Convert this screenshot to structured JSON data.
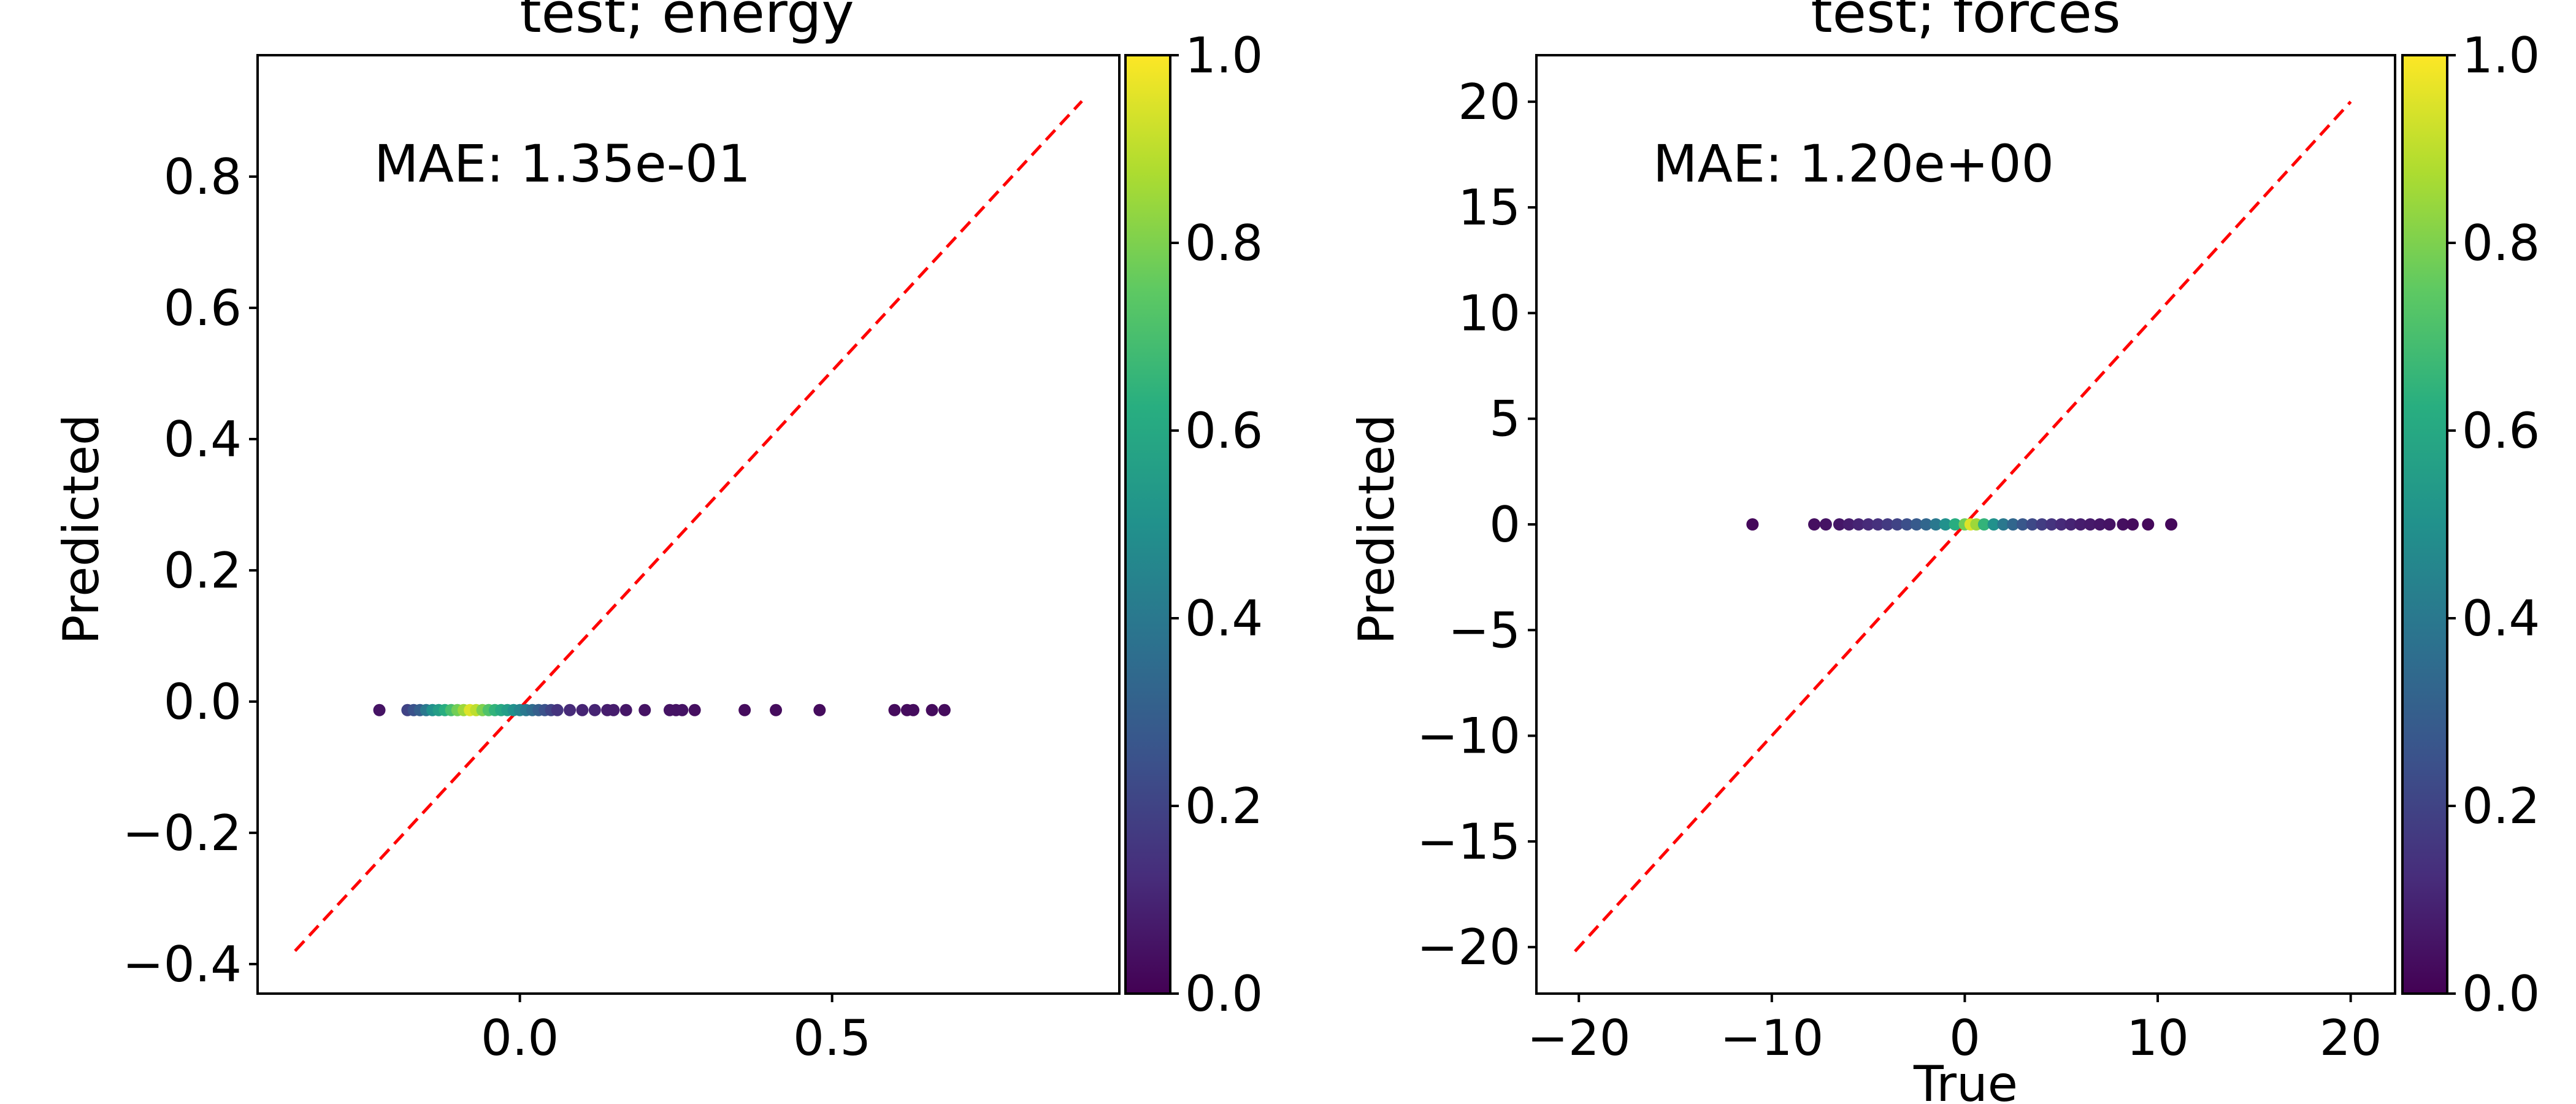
{
  "chart_data": [
    {
      "type": "scatter",
      "title": "test; energy",
      "xlabel": "",
      "ylabel": "Predicted",
      "annotation": "MAE: 1.35e-01",
      "xlim": [
        -0.42,
        0.96
      ],
      "ylim": [
        -0.445,
        0.985
      ],
      "xticks": [
        0.0,
        0.5
      ],
      "xtick_labels": [
        "0.0",
        "0.5"
      ],
      "yticks": [
        -0.4,
        -0.2,
        0.0,
        0.2,
        0.4,
        0.6,
        0.8
      ],
      "ytick_labels": [
        "−0.4",
        "−0.2",
        "0.0",
        "0.2",
        "0.4",
        "0.6",
        "0.8"
      ],
      "grid": false,
      "reference_line": {
        "from": [
          -0.36,
          -0.38
        ],
        "to": [
          0.9,
          0.915
        ],
        "color": "#ff0000",
        "style": "dashed"
      },
      "colorbar": {
        "min": 0.0,
        "max": 1.0,
        "ticks": [
          0.0,
          0.2,
          0.4,
          0.6,
          0.8,
          1.0
        ],
        "tick_labels": [
          "0.0",
          "0.2",
          "0.4",
          "0.6",
          "0.8",
          "1.0"
        ],
        "colormap": "viridis"
      },
      "series": [
        {
          "points": [
            [
              -0.225,
              -0.013,
              0.05
            ],
            [
              -0.18,
              -0.013,
              0.2
            ],
            [
              -0.17,
              -0.013,
              0.25
            ],
            [
              -0.16,
              -0.013,
              0.3
            ],
            [
              -0.15,
              -0.013,
              0.4
            ],
            [
              -0.14,
              -0.013,
              0.5
            ],
            [
              -0.13,
              -0.013,
              0.55
            ],
            [
              -0.12,
              -0.013,
              0.62
            ],
            [
              -0.11,
              -0.013,
              0.7
            ],
            [
              -0.1,
              -0.013,
              0.78
            ],
            [
              -0.09,
              -0.013,
              0.85
            ],
            [
              -0.08,
              -0.013,
              0.95
            ],
            [
              -0.07,
              -0.013,
              0.9
            ],
            [
              -0.06,
              -0.013,
              0.8
            ],
            [
              -0.05,
              -0.013,
              0.72
            ],
            [
              -0.04,
              -0.013,
              0.65
            ],
            [
              -0.03,
              -0.013,
              0.6
            ],
            [
              -0.02,
              -0.013,
              0.55
            ],
            [
              -0.01,
              -0.013,
              0.5
            ],
            [
              0.0,
              -0.013,
              0.45
            ],
            [
              0.01,
              -0.013,
              0.4
            ],
            [
              0.02,
              -0.013,
              0.35
            ],
            [
              0.03,
              -0.013,
              0.3
            ],
            [
              0.04,
              -0.013,
              0.25
            ],
            [
              0.05,
              -0.013,
              0.2
            ],
            [
              0.06,
              -0.013,
              0.15
            ],
            [
              0.08,
              -0.013,
              0.12
            ],
            [
              0.1,
              -0.013,
              0.1
            ],
            [
              0.12,
              -0.013,
              0.1
            ],
            [
              0.14,
              -0.013,
              0.08
            ],
            [
              0.15,
              -0.013,
              0.08
            ],
            [
              0.17,
              -0.013,
              0.06
            ],
            [
              0.2,
              -0.013,
              0.05
            ],
            [
              0.24,
              -0.013,
              0.05
            ],
            [
              0.25,
              -0.013,
              0.05
            ],
            [
              0.26,
              -0.013,
              0.05
            ],
            [
              0.28,
              -0.013,
              0.04
            ],
            [
              0.36,
              -0.013,
              0.03
            ],
            [
              0.41,
              -0.013,
              0.03
            ],
            [
              0.48,
              -0.013,
              0.03
            ],
            [
              0.6,
              -0.013,
              0.03
            ],
            [
              0.62,
              -0.013,
              0.03
            ],
            [
              0.63,
              -0.013,
              0.03
            ],
            [
              0.66,
              -0.013,
              0.03
            ],
            [
              0.68,
              -0.013,
              0.03
            ]
          ]
        }
      ]
    },
    {
      "type": "scatter",
      "title": "test; forces",
      "xlabel": "True",
      "ylabel": "Predicted",
      "annotation": "MAE: 1.20e+00",
      "xlim": [
        -22.2,
        22.3
      ],
      "ylim": [
        -22.2,
        22.2
      ],
      "xticks": [
        -20,
        -10,
        0,
        10,
        20
      ],
      "xtick_labels": [
        "−20",
        "−10",
        "0",
        "10",
        "20"
      ],
      "yticks": [
        -20,
        -15,
        -10,
        -5,
        0,
        5,
        10,
        15,
        20
      ],
      "ytick_labels": [
        "−20",
        "−15",
        "−10",
        "−5",
        "0",
        "5",
        "10",
        "15",
        "20"
      ],
      "grid": false,
      "reference_line": {
        "from": [
          -20.2,
          -20.2
        ],
        "to": [
          20.0,
          20.0
        ],
        "color": "#ff0000",
        "style": "dashed"
      },
      "colorbar": {
        "min": 0.0,
        "max": 1.0,
        "ticks": [
          0.0,
          0.2,
          0.4,
          0.6,
          0.8,
          1.0
        ],
        "tick_labels": [
          "0.0",
          "0.2",
          "0.4",
          "0.6",
          "0.8",
          "1.0"
        ],
        "colormap": "viridis"
      },
      "series": [
        {
          "points": [
            [
              -11.0,
              0,
              0.02
            ],
            [
              -7.8,
              0,
              0.04
            ],
            [
              -7.2,
              0,
              0.05
            ],
            [
              -6.5,
              0,
              0.06
            ],
            [
              -6.0,
              0,
              0.08
            ],
            [
              -5.5,
              0,
              0.1
            ],
            [
              -5.0,
              0,
              0.12
            ],
            [
              -4.5,
              0,
              0.14
            ],
            [
              -4.0,
              0,
              0.17
            ],
            [
              -3.5,
              0,
              0.2
            ],
            [
              -3.0,
              0,
              0.24
            ],
            [
              -2.5,
              0,
              0.28
            ],
            [
              -2.0,
              0,
              0.33
            ],
            [
              -1.5,
              0,
              0.4
            ],
            [
              -1.0,
              0,
              0.5
            ],
            [
              -0.5,
              0,
              0.62
            ],
            [
              0.0,
              0,
              0.78
            ],
            [
              0.3,
              0,
              0.95
            ],
            [
              0.6,
              0,
              0.85
            ],
            [
              1.0,
              0,
              0.65
            ],
            [
              1.5,
              0,
              0.5
            ],
            [
              2.0,
              0,
              0.4
            ],
            [
              2.5,
              0,
              0.33
            ],
            [
              3.0,
              0,
              0.27
            ],
            [
              3.5,
              0,
              0.22
            ],
            [
              4.0,
              0,
              0.18
            ],
            [
              4.5,
              0,
              0.15
            ],
            [
              5.0,
              0,
              0.12
            ],
            [
              5.5,
              0,
              0.1
            ],
            [
              6.0,
              0,
              0.08
            ],
            [
              6.5,
              0,
              0.07
            ],
            [
              7.0,
              0,
              0.06
            ],
            [
              7.5,
              0,
              0.05
            ],
            [
              8.2,
              0,
              0.04
            ],
            [
              8.7,
              0,
              0.03
            ],
            [
              9.5,
              0,
              0.02
            ],
            [
              10.7,
              0,
              0.02
            ]
          ]
        }
      ]
    }
  ]
}
